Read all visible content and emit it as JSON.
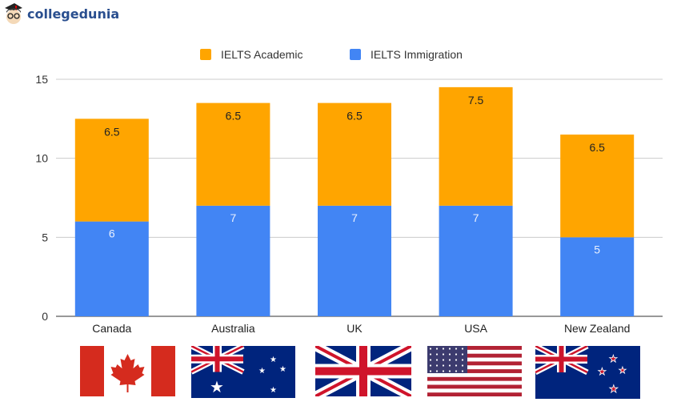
{
  "brand": {
    "name": "collegedunia"
  },
  "chart_data": {
    "type": "bar",
    "stacked": true,
    "categories": [
      "Canada",
      "Australia",
      "UK",
      "USA",
      "New Zealand"
    ],
    "series": [
      {
        "name": "IELTS Immigration",
        "values": [
          6,
          7,
          7,
          7,
          5
        ],
        "color": "#4285f4"
      },
      {
        "name": "IELTS Academic",
        "values": [
          6.5,
          6.5,
          6.5,
          7.5,
          6.5
        ],
        "color": "#ffa500"
      }
    ],
    "data_labels": {
      "IELTS Immigration": [
        "6",
        "7",
        "7",
        "7",
        "5"
      ],
      "IELTS Academic": [
        "6.5",
        "6.5",
        "6.5",
        "7.5",
        "6.5"
      ]
    },
    "legend_order": [
      "IELTS Academic",
      "IELTS Immigration"
    ],
    "yticks": [
      "0",
      "5",
      "10",
      "15"
    ],
    "ylim": [
      0,
      15
    ],
    "grid": true,
    "legend_position": "top",
    "xlabel": "",
    "ylabel": "",
    "title": ""
  },
  "flags": [
    "canada-flag",
    "australia-flag",
    "uk-flag",
    "usa-flag",
    "new-zealand-flag"
  ]
}
